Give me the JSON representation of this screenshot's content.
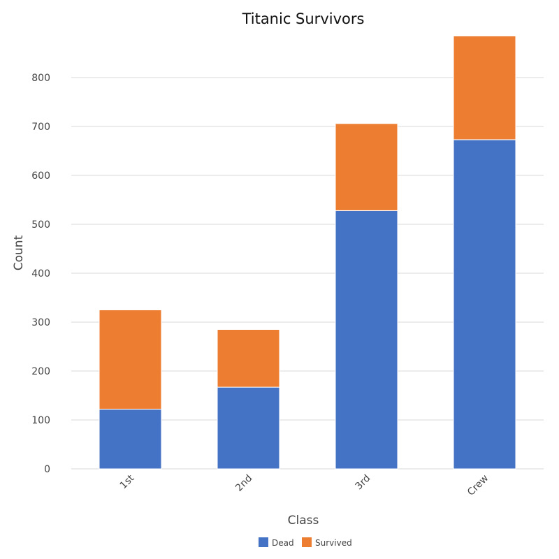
{
  "chart_data": {
    "type": "bar",
    "stacked": true,
    "title": "Titanic Survivors",
    "xlabel": "Class",
    "ylabel": "Count",
    "categories": [
      "1st",
      "2nd",
      "3rd",
      "Crew"
    ],
    "series": [
      {
        "name": "Dead",
        "values": [
          122,
          167,
          528,
          673
        ],
        "color": "#4472c4"
      },
      {
        "name": "Survived",
        "values": [
          203,
          118,
          178,
          212
        ],
        "color": "#ed7d31"
      }
    ],
    "ylim": [
      0,
      880
    ],
    "yticks": [
      0,
      100,
      200,
      300,
      400,
      500,
      600,
      700,
      800
    ],
    "grid": true,
    "legend_position": "bottom-center"
  }
}
